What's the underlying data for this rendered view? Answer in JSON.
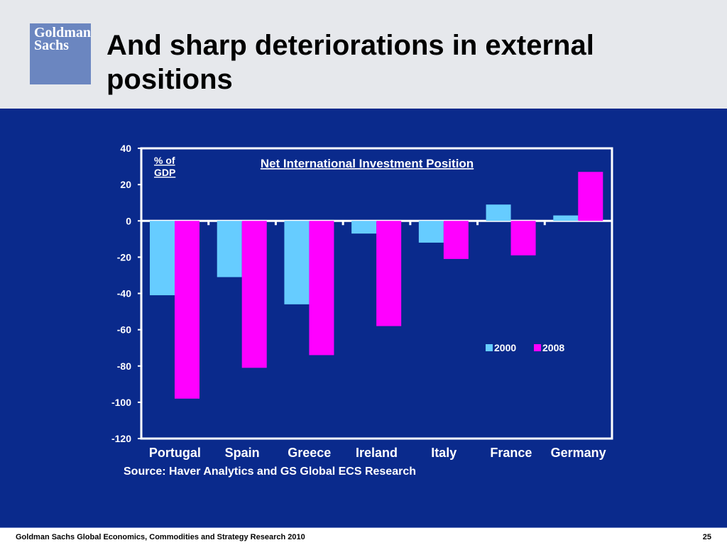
{
  "slide": {
    "title": "And sharp deteriorations in external positions",
    "logo_text": "Goldman\nSachs",
    "source": "Source: Haver Analytics and GS Global ECS Research",
    "footer_text": "Goldman Sachs Global Economics, Commodities and Strategy Research 2010",
    "page_number": "25"
  },
  "colors": {
    "background": "#0a2a8c",
    "series_2000": "#66ccff",
    "series_2008": "#ff00ff",
    "axis": "#ffffff"
  },
  "chart_data": {
    "type": "bar",
    "title": "Net International Investment Position",
    "ylabel": "% of GDP",
    "categories": [
      "Portugal",
      "Spain",
      "Greece",
      "Ireland",
      "Italy",
      "France",
      "Germany"
    ],
    "series": [
      {
        "name": "2000",
        "values": [
          -41,
          -31,
          -46,
          -7,
          -12,
          9,
          3
        ]
      },
      {
        "name": "2008",
        "values": [
          -98,
          -81,
          -74,
          -58,
          -21,
          -19,
          27
        ]
      }
    ],
    "ylim": [
      -120,
      40
    ],
    "yticks": [
      40,
      20,
      0,
      -20,
      -40,
      -60,
      -80,
      -100,
      -120
    ],
    "grid": false,
    "legend_position": "right"
  }
}
